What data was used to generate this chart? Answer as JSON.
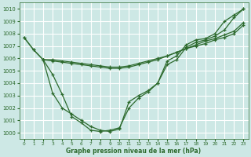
{
  "bg_color": "#cde8e5",
  "grid_color": "#ffffff",
  "line_color": "#2d6a2d",
  "marker_color": "#2d6a2d",
  "xlabel": "Graphe pression niveau de la mer (hPa)",
  "ylabel_ticks": [
    1000,
    1001,
    1002,
    1003,
    1004,
    1005,
    1006,
    1007,
    1008,
    1009,
    1010
  ],
  "ylim": [
    999.5,
    1010.5
  ],
  "xlim": [
    -0.5,
    23.5
  ],
  "xticks": [
    0,
    1,
    2,
    3,
    4,
    5,
    6,
    7,
    8,
    9,
    10,
    11,
    12,
    13,
    14,
    15,
    16,
    17,
    18,
    19,
    20,
    21,
    22,
    23
  ],
  "series": [
    [
      1007.7,
      1006.7,
      1005.9,
      1003.2,
      1002.0,
      1001.5,
      1001.0,
      1000.5,
      1000.2,
      1000.1,
      1000.3,
      1002.5,
      1003.0,
      1003.4,
      1004.0,
      1005.8,
      1006.2,
      1007.1,
      1007.5,
      1007.6,
      1008.0,
      1009.0,
      1009.5,
      1010.0
    ],
    [
      1007.7,
      1006.7,
      1005.9,
      1004.7,
      1003.1,
      1001.3,
      1000.8,
      1000.2,
      1000.1,
      1000.2,
      1000.4,
      1002.0,
      1002.8,
      1003.3,
      1004.0,
      1005.5,
      1005.9,
      1006.9,
      1007.3,
      1007.5,
      1007.8,
      1008.3,
      1009.3,
      1010.0
    ],
    [
      null,
      null,
      1005.9,
      1005.9,
      1005.8,
      1005.7,
      1005.6,
      1005.5,
      1005.4,
      1005.3,
      1005.3,
      1005.4,
      1005.6,
      1005.8,
      1006.0,
      1006.2,
      1006.5,
      1006.8,
      1007.0,
      1007.2,
      1007.5,
      1007.7,
      1008.0,
      1008.7
    ],
    [
      null,
      null,
      1005.9,
      1005.8,
      1005.7,
      1005.6,
      1005.5,
      1005.4,
      1005.3,
      1005.2,
      1005.2,
      1005.3,
      1005.5,
      1005.7,
      1005.9,
      1006.2,
      1006.5,
      1006.8,
      1007.1,
      1007.4,
      1007.6,
      1007.9,
      1008.2,
      1008.9
    ]
  ]
}
